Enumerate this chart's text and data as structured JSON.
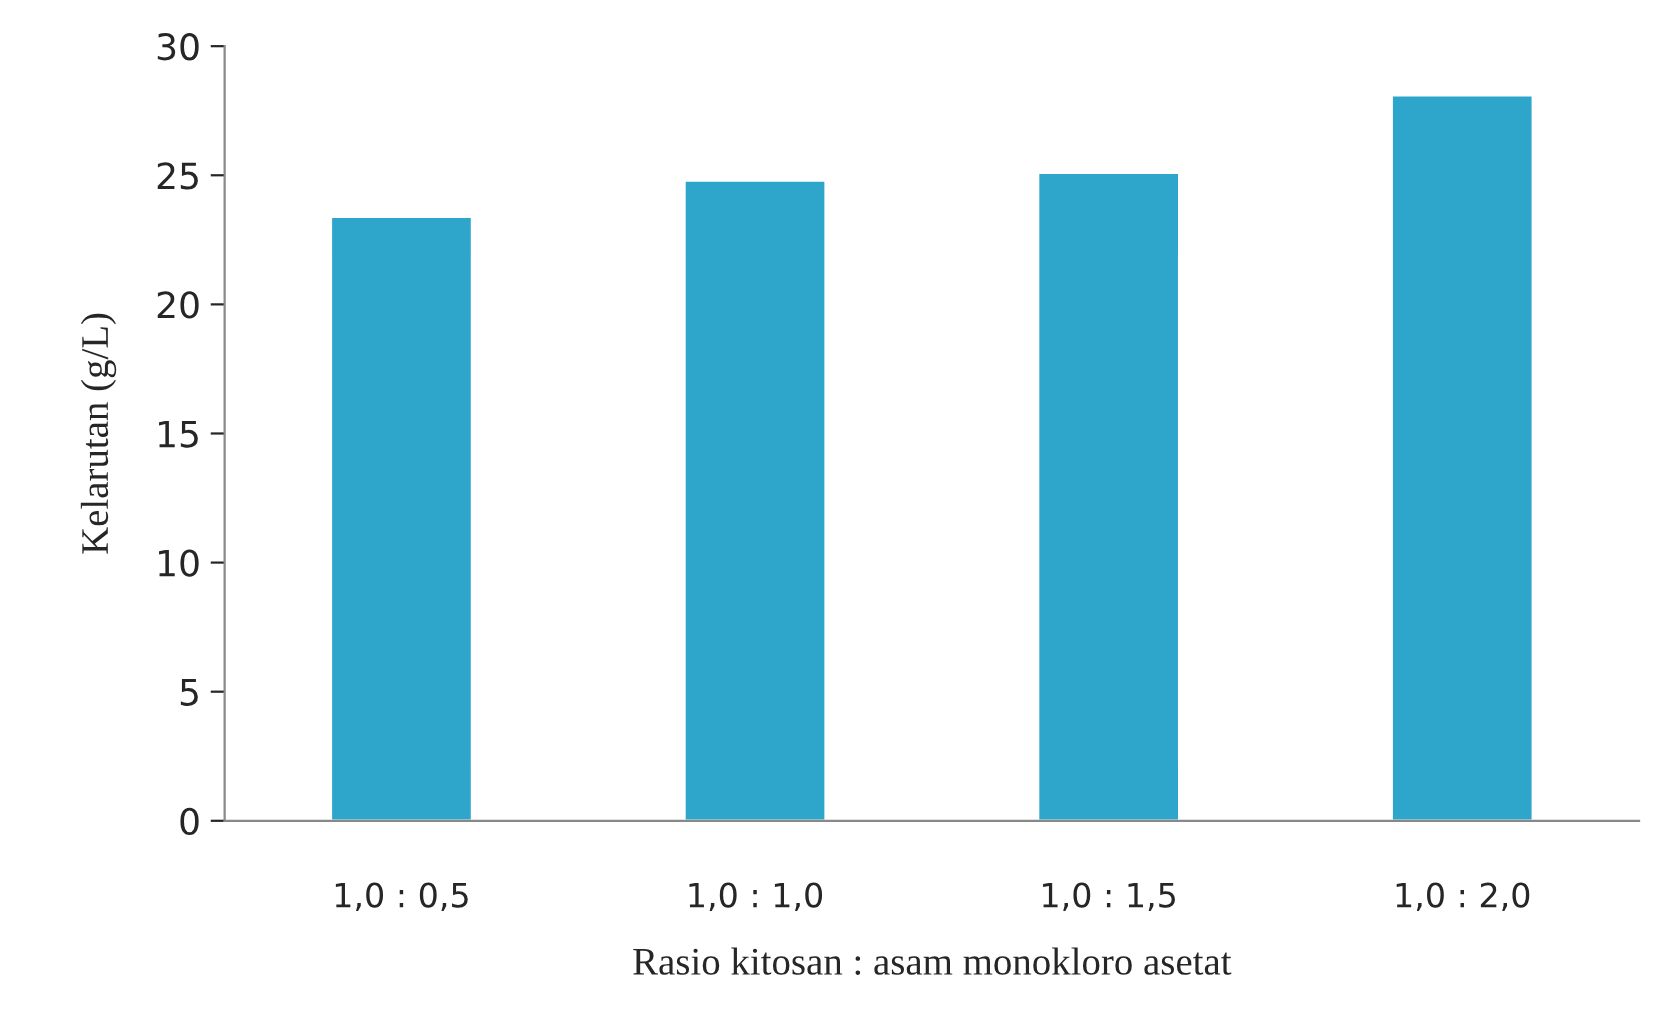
{
  "chart_data": {
    "type": "bar",
    "xlabel": "Rasio kitosan : asam monokloro asetat",
    "ylabel": "Kelarutan (g/L)",
    "categories": [
      "1,0 : 0,5",
      "1,0 : 1,0",
      "1,0 : 1,5",
      "1,0 : 2,0"
    ],
    "values": [
      23.4,
      24.8,
      25.1,
      28.1
    ],
    "color": "#2ea6cb",
    "ylim": [
      0,
      30
    ],
    "yticks": [
      0,
      5,
      10,
      15,
      20,
      25,
      30
    ],
    "grid": false
  }
}
